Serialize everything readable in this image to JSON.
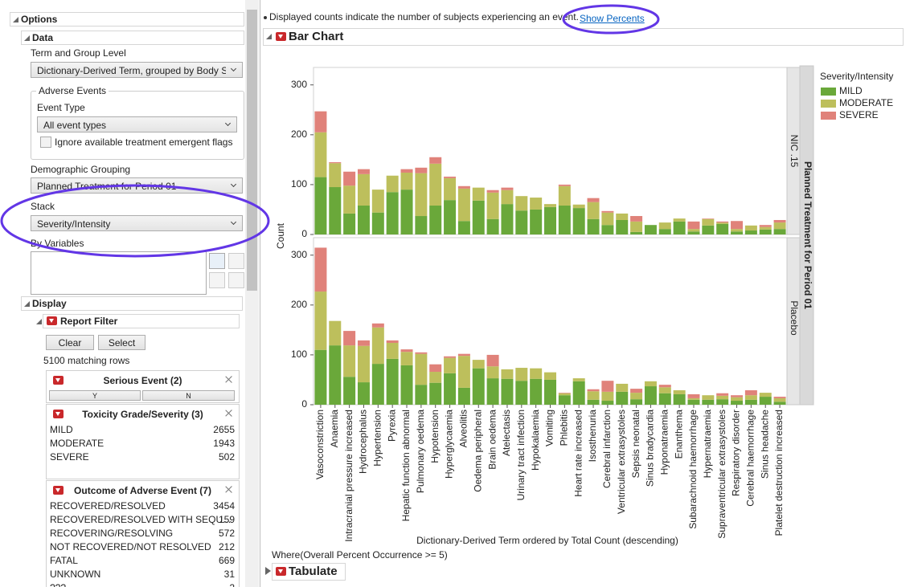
{
  "options_panel": {
    "title": "Options",
    "data_section": {
      "title": "Data",
      "term_label": "Term and Group Level",
      "term_value": "Dictionary-Derived Term, grouped by Body S",
      "adverse_events": {
        "title": "Adverse Events",
        "event_type_label": "Event Type",
        "event_type_value": "All event types",
        "checkbox_label": "Ignore available treatment emergent flags"
      },
      "demographic_label": "Demographic Grouping",
      "demographic_value": "Planned Treatment for Period 01",
      "stack_label": "Stack",
      "stack_value": "Severity/Intensity",
      "by_variables_label": "By Variables"
    },
    "display_section": {
      "title": "Display",
      "report_filter": {
        "title": "Report Filter",
        "clear": "Clear",
        "select": "Select",
        "matching_rows": "5100 matching rows",
        "filters": [
          {
            "title": "Serious Event (2)",
            "levels": [
              "Y",
              "N"
            ]
          },
          {
            "title": "Toxicity Grade/Severity (3)",
            "rows": [
              [
                "MILD",
                2655
              ],
              [
                "MODERATE",
                1943
              ],
              [
                "SEVERE",
                502
              ]
            ]
          },
          {
            "title": "Outcome of Adverse Event (7)",
            "rows": [
              [
                "RECOVERED/RESOLVED",
                3454
              ],
              [
                "RECOVERED/RESOLVED WITH SEQU...",
                159
              ],
              [
                "RECOVERING/RESOLVING",
                572
              ],
              [
                "NOT RECOVERED/NOT RESOLVED",
                212
              ],
              [
                "FATAL",
                669
              ],
              [
                "UNKNOWN",
                31
              ],
              [
                "???",
                2
              ]
            ]
          }
        ]
      }
    }
  },
  "report": {
    "note": "Displayed counts indicate the number of subjects experiencing an event.",
    "link": "Show Percents",
    "where": "Where(Overall Percent Occurrence >= 5)",
    "tabulate": "Tabulate"
  },
  "chart_data": {
    "type": "bar",
    "stacked": true,
    "title": "Bar Chart",
    "x_label": "Dictionary-Derived Term ordered by Total Count (descending)",
    "y_label": "Count",
    "group_label": "Planned Treatment for Period 01",
    "legend_title": "Severity/Intensity",
    "legend": "right",
    "categories": [
      "Vasoconstriction",
      "Anaemia",
      "Intracranial pressure increased",
      "Hydrocephalus",
      "Hypertension",
      "Pyrexia",
      "Hepatic function abnormal",
      "Pulmonary oedema",
      "Hypotension",
      "Hyperglycaemia",
      "Alveolitis",
      "Oedema peripheral",
      "Brain oedema",
      "Atelectasis",
      "Urinary tract infection",
      "Hypokalaemia",
      "Vomiting",
      "Phlebitis",
      "Heart rate increased",
      "Isosthenuria",
      "Cerebral infarction",
      "Ventricular extrasystoles",
      "Sepsis neonatal",
      "Sinus bradycardia",
      "Hyponatraemia",
      "Enanthema",
      "Subarachnoid haemorrhage",
      "Hypernatraemia",
      "Supraventricular extrasystoles",
      "Respiratory disorder",
      "Cerebral haemorrhage",
      "Sinus headache",
      "Platelet destruction increased"
    ],
    "series": [
      {
        "name": "MILD",
        "color": "#6aa83a"
      },
      {
        "name": "MODERATE",
        "color": "#bdbf5c"
      },
      {
        "name": "SEVERE",
        "color": "#e0827a"
      }
    ],
    "panels": [
      {
        "name": "NIC .15",
        "values": [
          [
            115,
            95,
            42,
            58,
            44,
            85,
            90,
            37,
            58,
            69,
            27,
            68,
            31,
            61,
            48,
            50,
            55,
            58,
            53,
            31,
            19,
            29,
            5,
            19,
            11,
            26,
            6,
            18,
            21,
            6,
            8,
            10,
            11
          ],
          [
            90,
            48,
            56,
            63,
            46,
            33,
            34,
            86,
            84,
            44,
            65,
            26,
            53,
            28,
            29,
            24,
            6,
            39,
            7,
            34,
            25,
            13,
            21,
            0,
            13,
            6,
            5,
            13,
            3,
            5,
            10,
            5,
            13
          ],
          [
            42,
            2,
            28,
            10,
            0,
            0,
            7,
            11,
            13,
            3,
            5,
            0,
            5,
            5,
            0,
            0,
            0,
            3,
            0,
            8,
            3,
            0,
            11,
            0,
            0,
            0,
            15,
            1,
            2,
            16,
            0,
            4,
            5
          ]
        ]
      },
      {
        "name": "Placebo",
        "values": [
          [
            110,
            119,
            56,
            45,
            82,
            92,
            79,
            40,
            44,
            63,
            34,
            73,
            53,
            52,
            48,
            52,
            50,
            19,
            47,
            10,
            8,
            26,
            11,
            37,
            23,
            21,
            10,
            10,
            11,
            8,
            10,
            16,
            6
          ],
          [
            117,
            49,
            63,
            73,
            73,
            32,
            27,
            62,
            22,
            31,
            64,
            17,
            24,
            19,
            26,
            21,
            15,
            4,
            6,
            17,
            18,
            16,
            13,
            10,
            12,
            8,
            3,
            9,
            7,
            7,
            9,
            8,
            7
          ],
          [
            88,
            0,
            29,
            11,
            8,
            5,
            5,
            3,
            15,
            3,
            4,
            0,
            23,
            0,
            0,
            0,
            0,
            1,
            0,
            4,
            22,
            0,
            8,
            0,
            5,
            0,
            8,
            0,
            5,
            4,
            10,
            0,
            3
          ]
        ]
      }
    ],
    "ylim": [
      0,
      335
    ],
    "yticks": [
      0,
      100,
      200,
      300
    ]
  }
}
